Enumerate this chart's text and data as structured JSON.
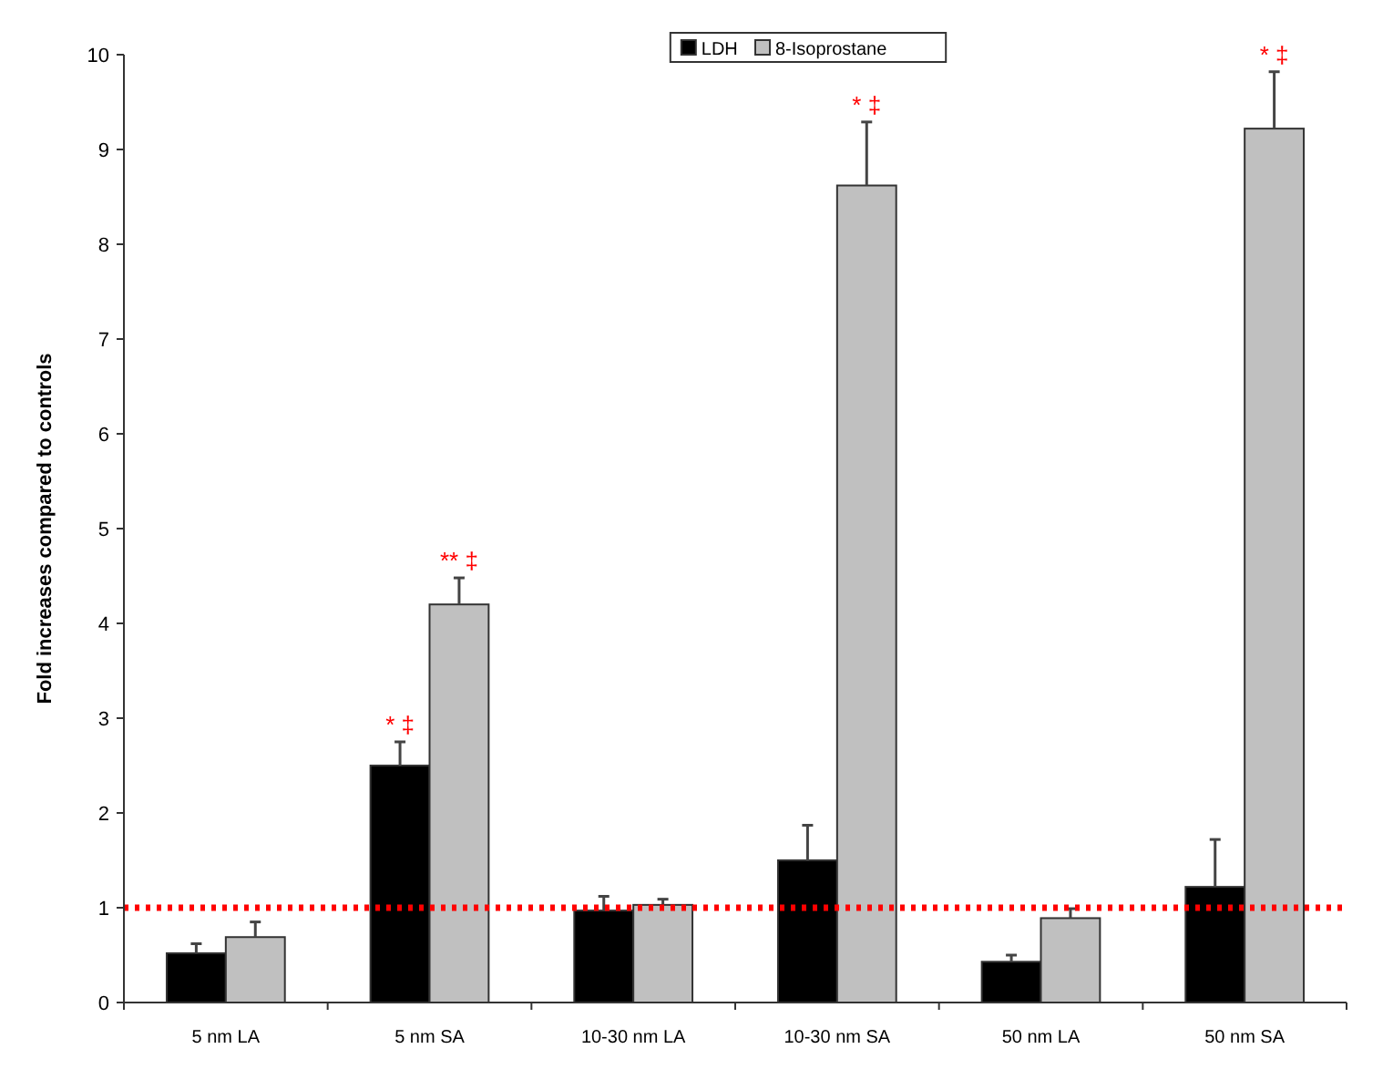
{
  "chart_data": {
    "type": "bar",
    "ylabel": "Fold increases compared to controls",
    "categories": [
      "5 nm LA",
      "5 nm SA",
      "10-30 nm LA",
      "10-30 nm SA",
      "50 nm LA",
      "50 nm SA"
    ],
    "series": [
      {
        "name": "LDH",
        "color": "#000000",
        "values": [
          0.52,
          2.5,
          0.97,
          1.5,
          0.43,
          1.22
        ],
        "value_labels": [
          null,
          "*  ‡",
          null,
          null,
          null,
          null
        ],
        "errors": [
          0.1,
          0.25,
          0.15,
          0.37,
          0.07,
          0.5
        ]
      },
      {
        "name": "8-Isoprostane",
        "color": "#c0c0c0",
        "values": [
          0.69,
          4.2,
          1.03,
          8.62,
          0.89,
          9.22
        ],
        "value_labels": [
          null,
          "**  ‡",
          null,
          "*  ‡",
          null,
          "*  ‡"
        ],
        "errors": [
          0.16,
          0.28,
          0.06,
          0.67,
          0.1,
          0.6
        ]
      }
    ],
    "ylim": [
      0,
      10
    ],
    "yticks": [
      0,
      1,
      2,
      3,
      4,
      5,
      6,
      7,
      8,
      9,
      10
    ],
    "grid": false,
    "legend": "top",
    "ref_lines": [
      {
        "axis": "y",
        "value": 1,
        "color": "#ff0000",
        "line_style": "dotted"
      }
    ]
  }
}
